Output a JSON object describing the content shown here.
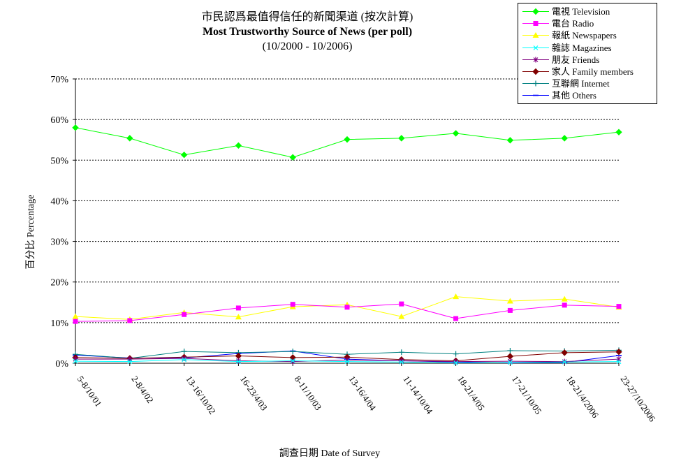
{
  "chart_data": {
    "type": "line",
    "title": "市民認爲最值得信任的新聞渠道 (按次計算)",
    "subtitle": "Most Trustworthy Source of News (per poll)",
    "subtitle2": "(10/2000 - 10/2006)",
    "xlabel": "調查日期 Date of Survey",
    "ylabel": "百分比 Percentage",
    "ylim": [
      0,
      70
    ],
    "yticks": [
      "0%",
      "10%",
      "20%",
      "30%",
      "40%",
      "50%",
      "60%",
      "70%"
    ],
    "grid": true,
    "legend_position": "top-right",
    "categories": [
      "5-8/10/01",
      "2-8/4/02",
      "13-16/10/02",
      "16-23/4/03",
      "8-11/10/03",
      "13-16/4/04",
      "11-14/10/04",
      "18-21/4/05",
      "17-21/10/05",
      "18-21/4/2006",
      "23-27/10/2006"
    ],
    "series": [
      {
        "name": "電視 Television",
        "color": "#00ff00",
        "marker": "diamond",
        "values": [
          58.0,
          55.4,
          51.3,
          53.6,
          50.7,
          55.1,
          55.4,
          56.6,
          54.9,
          55.4,
          56.9
        ]
      },
      {
        "name": "電台 Radio",
        "color": "#ff00ff",
        "marker": "square",
        "values": [
          10.3,
          10.5,
          12.0,
          13.6,
          14.5,
          13.8,
          14.6,
          11.0,
          13.0,
          14.3,
          14.0
        ]
      },
      {
        "name": "報紙 Newspapers",
        "color": "#ffff00",
        "marker": "triangle",
        "values": [
          11.5,
          10.8,
          12.5,
          11.4,
          13.9,
          14.4,
          11.5,
          16.4,
          15.3,
          15.8,
          13.8
        ]
      },
      {
        "name": "雜誌 Magazines",
        "color": "#00ffff",
        "marker": "x",
        "values": [
          0.5,
          0.4,
          0.9,
          0.4,
          0.6,
          0.4,
          0.3,
          0.1,
          0.2,
          0.3,
          0.4
        ]
      },
      {
        "name": "朋友 Friends",
        "color": "#800080",
        "marker": "star",
        "values": [
          1.0,
          1.0,
          1.2,
          0.6,
          0.4,
          0.8,
          0.6,
          0.4,
          0.5,
          0.4,
          1.0
        ]
      },
      {
        "name": "家人 Family members",
        "color": "#800000",
        "marker": "diamond",
        "values": [
          1.4,
          1.2,
          1.5,
          1.8,
          1.4,
          1.5,
          0.9,
          0.6,
          1.7,
          2.6,
          2.8
        ]
      },
      {
        "name": "互聯網 Internet",
        "color": "#008080",
        "marker": "plus",
        "values": [
          2.2,
          1.2,
          2.9,
          2.6,
          2.9,
          2.2,
          2.7,
          2.3,
          3.1,
          3.0,
          3.2
        ]
      },
      {
        "name": "其他 Others",
        "color": "#0000ff",
        "marker": "dash",
        "values": [
          2.0,
          1.3,
          1.3,
          2.4,
          3.0,
          1.0,
          0.6,
          0.3,
          0.1,
          0.2,
          1.9
        ]
      }
    ]
  }
}
